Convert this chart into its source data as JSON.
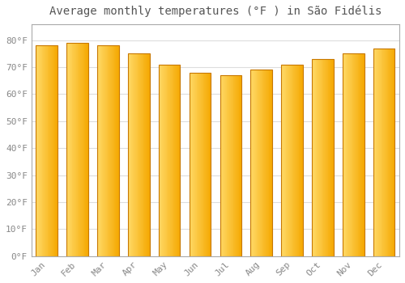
{
  "title": "Average monthly temperatures (°F ) in São Fidélis",
  "months": [
    "Jan",
    "Feb",
    "Mar",
    "Apr",
    "May",
    "Jun",
    "Jul",
    "Aug",
    "Sep",
    "Oct",
    "Nov",
    "Dec"
  ],
  "values": [
    78,
    79,
    78,
    75,
    71,
    68,
    67,
    69,
    71,
    73,
    75,
    77
  ],
  "bar_color_right": "#F5A800",
  "bar_color_left": "#FFD966",
  "bar_edge_color": "#C87800",
  "background_color": "#ffffff",
  "plot_bg_color": "#ffffff",
  "grid_color": "#dddddd",
  "yticks": [
    0,
    10,
    20,
    30,
    40,
    50,
    60,
    70,
    80
  ],
  "ylim": [
    0,
    86
  ],
  "title_fontsize": 10,
  "tick_fontsize": 8,
  "font_color": "#888888",
  "title_color": "#555555",
  "spine_color": "#aaaaaa"
}
